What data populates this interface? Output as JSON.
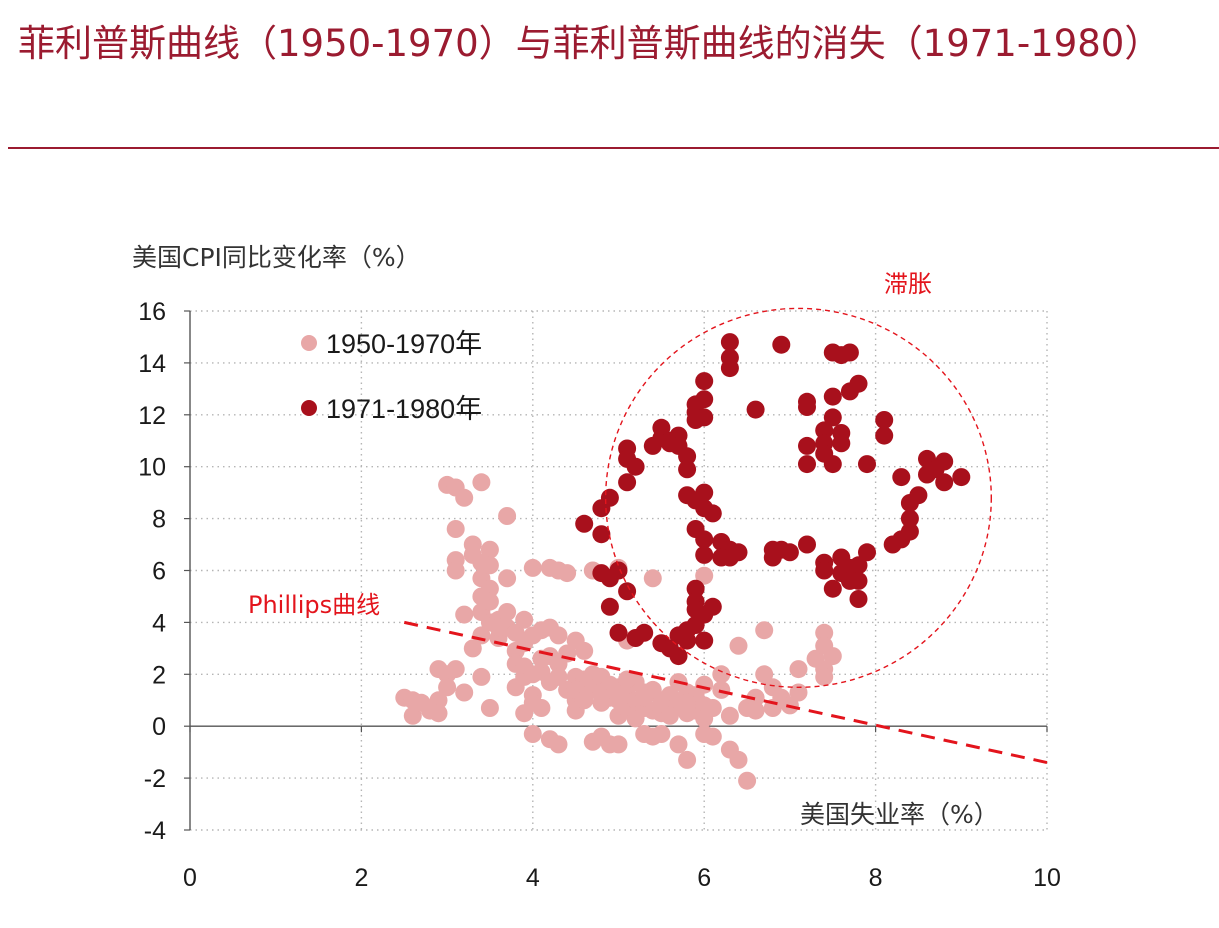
{
  "title": "菲利普斯曲线（1950-1970）与菲利普斯曲线的消失（1971-1980）",
  "colors": {
    "accent": "#9b1b30",
    "series1": "#e8a7a7",
    "series2": "#a8101c",
    "annotation": "#e3141c"
  },
  "chart_data": {
    "type": "scatter",
    "ylabel": "美国CPI同比变化率（%）",
    "xlabel": "美国失业率（%）",
    "xlim": [
      0,
      10
    ],
    "ylim": [
      -4,
      16
    ],
    "x_ticks": [
      "0",
      "2",
      "4",
      "6",
      "8",
      "10"
    ],
    "y_ticks": [
      "-4",
      "-2",
      "0",
      "2",
      "4",
      "6",
      "8",
      "10",
      "12",
      "14",
      "16"
    ],
    "grid": "dotted",
    "legend_position": "top-left",
    "series": [
      {
        "name": "1950-1970年",
        "color": "#e8a7a7",
        "points": [
          [
            2.5,
            1.1
          ],
          [
            2.6,
            1.0
          ],
          [
            2.6,
            0.4
          ],
          [
            2.7,
            0.9
          ],
          [
            2.8,
            0.6
          ],
          [
            2.9,
            1.0
          ],
          [
            2.9,
            0.5
          ],
          [
            2.9,
            2.2
          ],
          [
            3.0,
            2.0
          ],
          [
            3.0,
            1.5
          ],
          [
            3.0,
            9.3
          ],
          [
            3.1,
            9.2
          ],
          [
            3.1,
            7.6
          ],
          [
            3.1,
            6.4
          ],
          [
            3.1,
            6.0
          ],
          [
            3.1,
            2.2
          ],
          [
            3.2,
            8.8
          ],
          [
            3.2,
            4.3
          ],
          [
            3.2,
            1.3
          ],
          [
            3.3,
            7.0
          ],
          [
            3.3,
            6.6
          ],
          [
            3.3,
            3.0
          ],
          [
            3.4,
            9.4
          ],
          [
            3.4,
            6.3
          ],
          [
            3.4,
            5.7
          ],
          [
            3.4,
            5.0
          ],
          [
            3.4,
            4.4
          ],
          [
            3.4,
            3.5
          ],
          [
            3.4,
            1.9
          ],
          [
            3.5,
            6.8
          ],
          [
            3.5,
            6.2
          ],
          [
            3.5,
            5.3
          ],
          [
            3.5,
            4.8
          ],
          [
            3.5,
            4.0
          ],
          [
            3.5,
            0.7
          ],
          [
            3.6,
            4.1
          ],
          [
            3.6,
            3.4
          ],
          [
            3.7,
            8.1
          ],
          [
            3.7,
            5.7
          ],
          [
            3.7,
            4.4
          ],
          [
            3.7,
            3.8
          ],
          [
            3.8,
            3.6
          ],
          [
            3.8,
            2.9
          ],
          [
            3.8,
            2.4
          ],
          [
            3.8,
            1.5
          ],
          [
            3.9,
            3.2
          ],
          [
            3.9,
            2.3
          ],
          [
            3.9,
            1.9
          ],
          [
            3.9,
            0.5
          ],
          [
            4.0,
            6.1
          ],
          [
            4.0,
            3.5
          ],
          [
            4.0,
            2.0
          ],
          [
            4.0,
            1.2
          ],
          [
            4.0,
            0.9
          ],
          [
            4.0,
            -0.3
          ],
          [
            4.1,
            3.7
          ],
          [
            4.1,
            2.1
          ],
          [
            4.1,
            0.7
          ],
          [
            4.2,
            6.1
          ],
          [
            4.2,
            3.8
          ],
          [
            4.2,
            2.7
          ],
          [
            4.2,
            1.7
          ],
          [
            4.2,
            -0.5
          ],
          [
            4.3,
            6.0
          ],
          [
            4.3,
            3.5
          ],
          [
            4.3,
            2.4
          ],
          [
            4.3,
            -0.7
          ],
          [
            4.4,
            5.9
          ],
          [
            4.4,
            2.8
          ],
          [
            4.4,
            1.4
          ],
          [
            4.5,
            3.3
          ],
          [
            4.5,
            1.9
          ],
          [
            4.5,
            1.0
          ],
          [
            4.5,
            0.6
          ],
          [
            4.6,
            2.9
          ],
          [
            4.6,
            1.8
          ],
          [
            4.6,
            1.2
          ],
          [
            4.7,
            6.0
          ],
          [
            4.7,
            2.0
          ],
          [
            4.7,
            1.4
          ],
          [
            4.7,
            -0.6
          ],
          [
            4.8,
            1.9
          ],
          [
            4.8,
            1.3
          ],
          [
            4.8,
            -0.4
          ],
          [
            4.9,
            1.6
          ],
          [
            4.9,
            1.1
          ],
          [
            4.9,
            -0.7
          ],
          [
            5.0,
            6.1
          ],
          [
            5.0,
            1.5
          ],
          [
            5.0,
            1.0
          ],
          [
            5.0,
            0.4
          ],
          [
            5.0,
            -0.7
          ],
          [
            5.1,
            3.3
          ],
          [
            5.1,
            1.2
          ],
          [
            5.1,
            0.7
          ],
          [
            5.2,
            1.7
          ],
          [
            5.2,
            1.0
          ],
          [
            5.2,
            0.3
          ],
          [
            5.3,
            1.3
          ],
          [
            5.3,
            0.7
          ],
          [
            5.3,
            -0.3
          ],
          [
            5.4,
            5.7
          ],
          [
            5.4,
            1.4
          ],
          [
            5.4,
            0.6
          ],
          [
            5.4,
            -0.4
          ],
          [
            5.5,
            1.0
          ],
          [
            5.5,
            0.5
          ],
          [
            5.5,
            -0.3
          ],
          [
            5.6,
            1.2
          ],
          [
            5.6,
            0.6
          ],
          [
            5.7,
            1.7
          ],
          [
            5.7,
            0.9
          ],
          [
            5.7,
            -0.7
          ],
          [
            5.8,
            1.3
          ],
          [
            5.8,
            0.5
          ],
          [
            5.8,
            -1.3
          ],
          [
            5.9,
            1.2
          ],
          [
            5.9,
            0.6
          ],
          [
            6.0,
            5.8
          ],
          [
            6.0,
            1.6
          ],
          [
            6.0,
            0.8
          ],
          [
            6.0,
            0.3
          ],
          [
            6.0,
            -0.3
          ],
          [
            6.1,
            0.7
          ],
          [
            6.1,
            -0.4
          ],
          [
            6.2,
            2.0
          ],
          [
            6.2,
            1.4
          ],
          [
            6.3,
            0.4
          ],
          [
            6.3,
            -0.9
          ],
          [
            6.4,
            3.1
          ],
          [
            6.4,
            -1.3
          ],
          [
            6.5,
            0.7
          ],
          [
            6.5,
            -2.1
          ],
          [
            6.6,
            1.1
          ],
          [
            6.6,
            0.6
          ],
          [
            6.7,
            3.7
          ],
          [
            6.7,
            2.0
          ],
          [
            6.8,
            1.5
          ],
          [
            6.8,
            0.7
          ],
          [
            6.9,
            1.1
          ],
          [
            7.0,
            0.8
          ],
          [
            7.1,
            1.3
          ],
          [
            7.1,
            2.2
          ],
          [
            7.3,
            2.6
          ],
          [
            7.4,
            3.6
          ],
          [
            7.4,
            3.1
          ],
          [
            7.4,
            2.2
          ],
          [
            7.4,
            1.9
          ],
          [
            7.5,
            2.7
          ],
          [
            4.5,
            1.4
          ],
          [
            4.6,
            1.0
          ],
          [
            4.8,
            0.9
          ],
          [
            5.1,
            1.8
          ],
          [
            5.3,
            1.1
          ],
          [
            5.6,
            0.4
          ],
          [
            5.8,
            0.9
          ],
          [
            3.6,
            3.8
          ],
          [
            3.9,
            4.1
          ],
          [
            4.1,
            2.6
          ],
          [
            4.3,
            1.9
          ]
        ]
      },
      {
        "name": "1971-1980年",
        "color": "#a8101c",
        "points": [
          [
            4.6,
            7.8
          ],
          [
            4.8,
            8.4
          ],
          [
            4.8,
            7.4
          ],
          [
            4.8,
            5.9
          ],
          [
            4.9,
            8.8
          ],
          [
            4.9,
            5.7
          ],
          [
            4.9,
            4.6
          ],
          [
            5.0,
            6.0
          ],
          [
            5.0,
            3.6
          ],
          [
            5.1,
            10.7
          ],
          [
            5.1,
            10.3
          ],
          [
            5.1,
            9.4
          ],
          [
            5.1,
            5.2
          ],
          [
            5.2,
            10.0
          ],
          [
            5.2,
            3.4
          ],
          [
            5.3,
            3.6
          ],
          [
            5.4,
            10.8
          ],
          [
            5.5,
            11.5
          ],
          [
            5.5,
            11.1
          ],
          [
            5.5,
            3.2
          ],
          [
            5.6,
            11.0
          ],
          [
            5.6,
            10.9
          ],
          [
            5.6,
            3.0
          ],
          [
            5.7,
            11.2
          ],
          [
            5.7,
            10.8
          ],
          [
            5.7,
            2.7
          ],
          [
            5.7,
            3.5
          ],
          [
            5.8,
            10.4
          ],
          [
            5.8,
            9.9
          ],
          [
            5.8,
            8.9
          ],
          [
            5.8,
            3.3
          ],
          [
            5.8,
            3.7
          ],
          [
            5.9,
            12.4
          ],
          [
            5.9,
            12.1
          ],
          [
            5.9,
            11.8
          ],
          [
            5.9,
            8.7
          ],
          [
            5.9,
            7.6
          ],
          [
            5.9,
            5.3
          ],
          [
            5.9,
            4.8
          ],
          [
            5.9,
            4.5
          ],
          [
            5.9,
            3.9
          ],
          [
            6.0,
            13.3
          ],
          [
            6.0,
            12.6
          ],
          [
            6.0,
            11.9
          ],
          [
            6.0,
            9.0
          ],
          [
            6.0,
            8.4
          ],
          [
            6.0,
            7.2
          ],
          [
            6.0,
            6.6
          ],
          [
            6.0,
            4.3
          ],
          [
            6.0,
            3.3
          ],
          [
            6.1,
            8.2
          ],
          [
            6.1,
            4.6
          ],
          [
            6.2,
            7.1
          ],
          [
            6.2,
            6.5
          ],
          [
            6.3,
            14.8
          ],
          [
            6.3,
            14.2
          ],
          [
            6.3,
            13.8
          ],
          [
            6.3,
            6.8
          ],
          [
            6.3,
            6.5
          ],
          [
            6.4,
            6.7
          ],
          [
            6.6,
            12.2
          ],
          [
            6.8,
            6.8
          ],
          [
            6.8,
            6.5
          ],
          [
            6.9,
            14.7
          ],
          [
            6.9,
            6.8
          ],
          [
            7.0,
            6.7
          ],
          [
            7.2,
            12.5
          ],
          [
            7.2,
            12.3
          ],
          [
            7.2,
            10.8
          ],
          [
            7.2,
            10.1
          ],
          [
            7.2,
            7.0
          ],
          [
            7.4,
            11.4
          ],
          [
            7.4,
            10.9
          ],
          [
            7.4,
            10.5
          ],
          [
            7.4,
            6.3
          ],
          [
            7.4,
            6.0
          ],
          [
            7.5,
            14.4
          ],
          [
            7.5,
            12.7
          ],
          [
            7.5,
            11.9
          ],
          [
            7.5,
            10.1
          ],
          [
            7.5,
            5.3
          ],
          [
            7.6,
            14.3
          ],
          [
            7.6,
            11.3
          ],
          [
            7.6,
            10.9
          ],
          [
            7.6,
            6.5
          ],
          [
            7.6,
            5.9
          ],
          [
            7.7,
            14.4
          ],
          [
            7.7,
            12.9
          ],
          [
            7.7,
            6.1
          ],
          [
            7.7,
            5.6
          ],
          [
            7.8,
            13.2
          ],
          [
            7.8,
            6.2
          ],
          [
            7.8,
            5.6
          ],
          [
            7.8,
            4.9
          ],
          [
            7.9,
            10.1
          ],
          [
            7.9,
            6.7
          ],
          [
            8.1,
            11.8
          ],
          [
            8.1,
            11.2
          ],
          [
            8.2,
            7.0
          ],
          [
            8.3,
            9.6
          ],
          [
            8.3,
            7.2
          ],
          [
            8.4,
            8.6
          ],
          [
            8.4,
            8.0
          ],
          [
            8.4,
            7.5
          ],
          [
            8.5,
            8.9
          ],
          [
            8.6,
            10.3
          ],
          [
            8.6,
            9.7
          ],
          [
            8.7,
            9.9
          ],
          [
            8.8,
            10.2
          ],
          [
            8.8,
            9.4
          ],
          [
            9.0,
            9.6
          ]
        ]
      }
    ],
    "trendline": {
      "label": "Phillips曲线",
      "color": "#e3141c",
      "style": "dashed",
      "from": [
        2.5,
        4.0
      ],
      "to": [
        10.0,
        -1.4
      ]
    },
    "annotations": [
      {
        "text": "滞胀",
        "color": "#e3141c",
        "shape": "dashed-ellipse",
        "center": [
          7.1,
          8.8
        ],
        "radii": [
          2.25,
          7.3
        ]
      }
    ]
  }
}
